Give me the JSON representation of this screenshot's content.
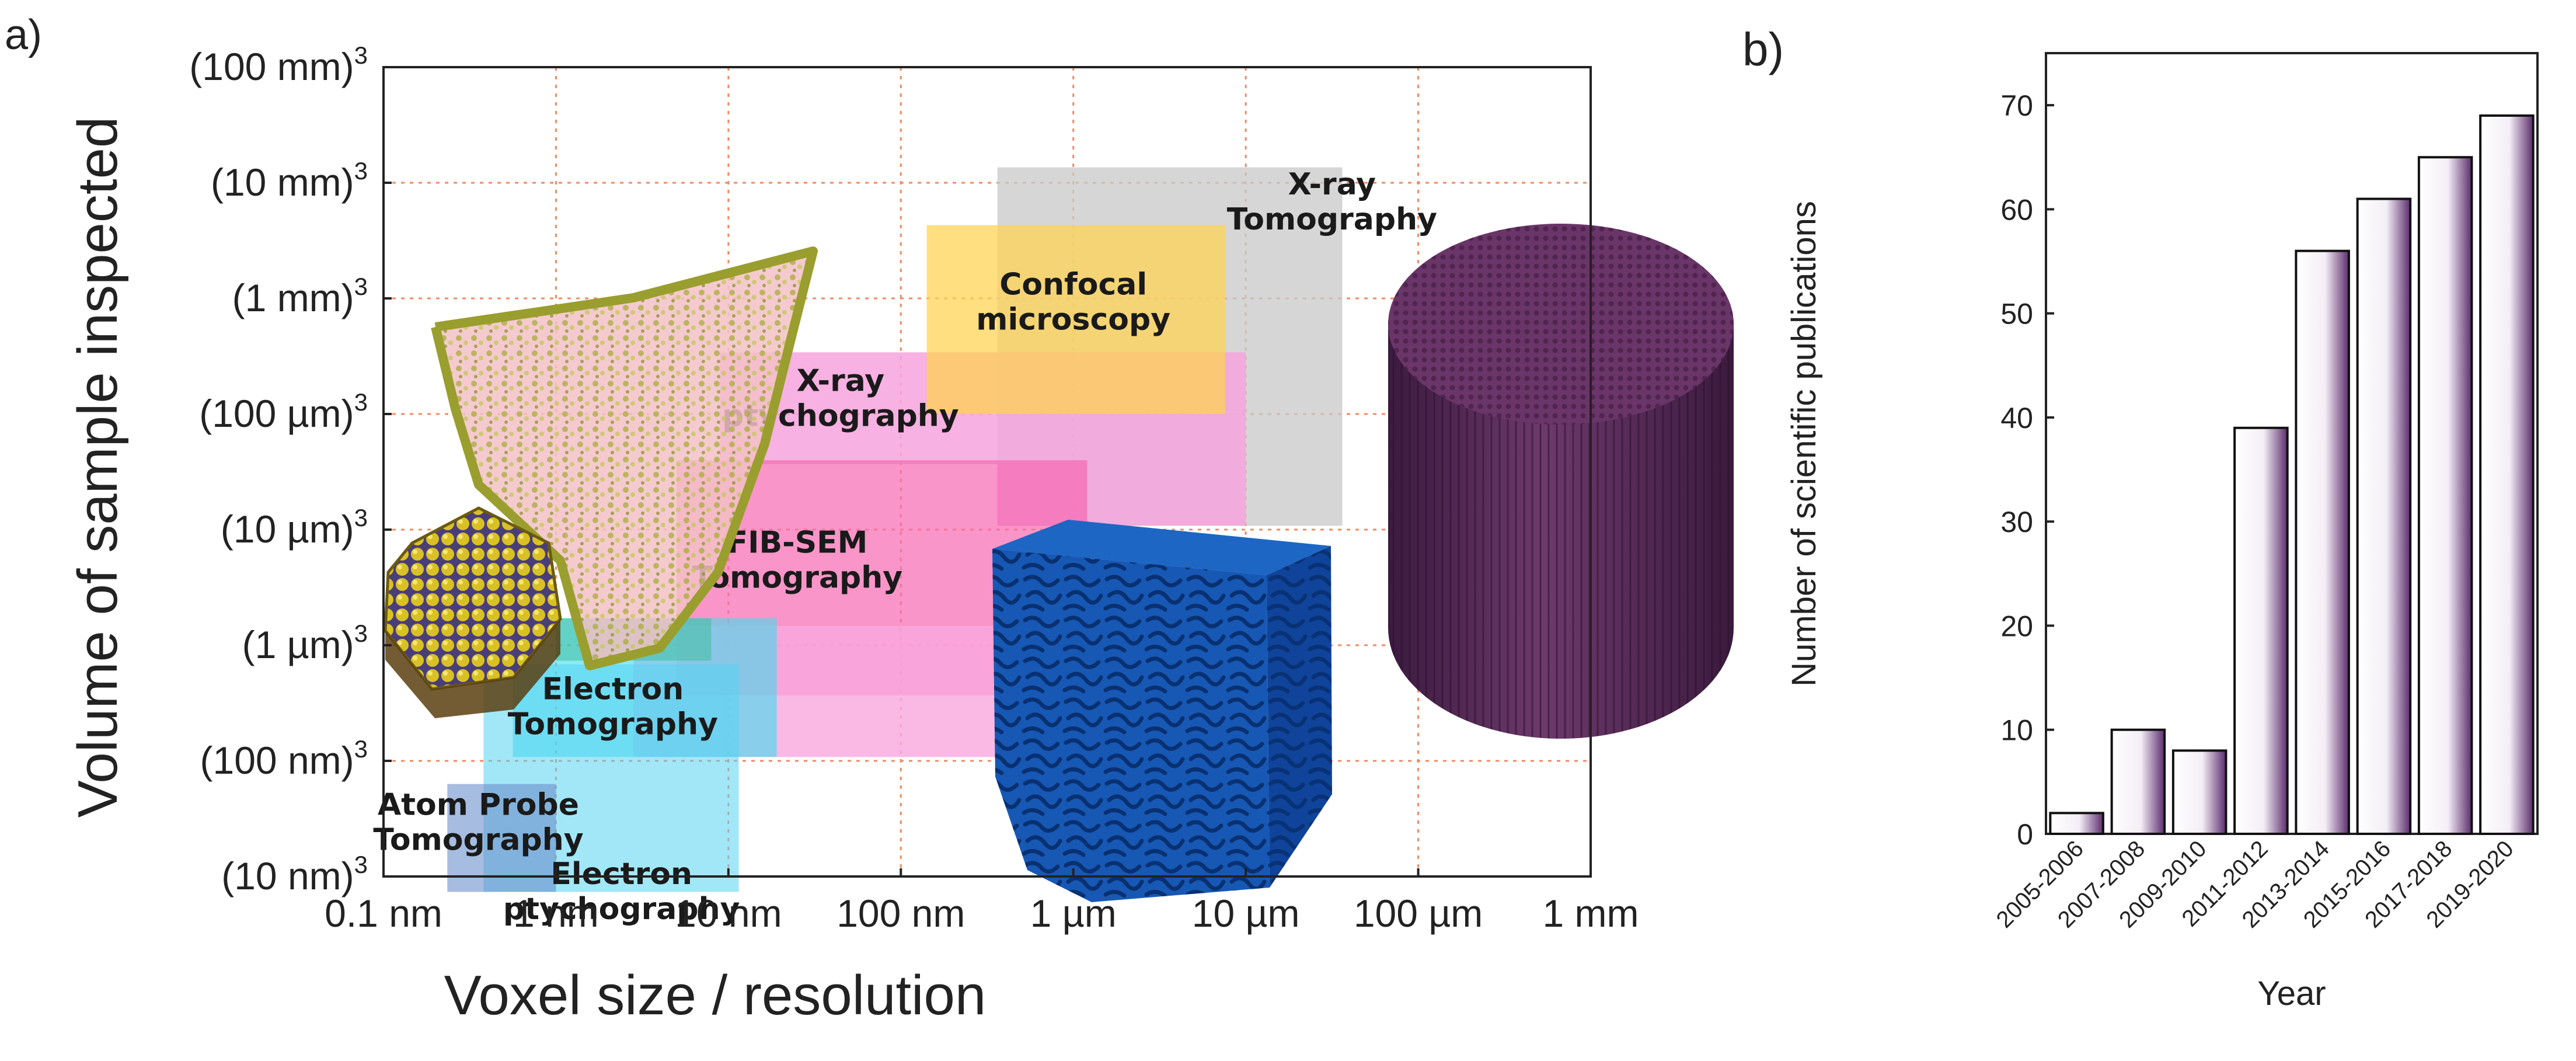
{
  "panel_labels": {
    "a": "a)",
    "b": "b)"
  },
  "chart_data": [
    {
      "id": "panel-a",
      "type": "region-map",
      "xlabel": "Voxel size / resolution",
      "ylabel": "Volume of sample inspected",
      "x_scale": "log10_meters",
      "y_scale": "log10_cubic_meters",
      "xlim": [
        -10,
        -3
      ],
      "ylim": [
        -24,
        -3
      ],
      "x_ticks": [
        {
          "v": -10,
          "label": "0.1 nm"
        },
        {
          "v": -9,
          "label": "1 nm"
        },
        {
          "v": -8,
          "label": "10 nm"
        },
        {
          "v": -7,
          "label": "100 nm"
        },
        {
          "v": -6,
          "label": "1 µm"
        },
        {
          "v": -5,
          "label": "10 µm"
        },
        {
          "v": -4,
          "label": "100 µm"
        },
        {
          "v": -3,
          "label": "1 mm"
        }
      ],
      "y_ticks": [
        {
          "v": -24,
          "base": "(10 nm)",
          "exp": "3"
        },
        {
          "v": -21,
          "base": "(100 nm)",
          "exp": "3"
        },
        {
          "v": -18,
          "base": "(1 µm)",
          "exp": "3"
        },
        {
          "v": -15,
          "base": "(10 µm)",
          "exp": "3"
        },
        {
          "v": -12,
          "base": "(100 µm)",
          "exp": "3"
        },
        {
          "v": -9,
          "base": "(1 mm)",
          "exp": "3"
        },
        {
          "v": -6,
          "base": "(10 mm)",
          "exp": "3"
        },
        {
          "v": -3,
          "base": "(100 mm)",
          "exp": "3"
        }
      ],
      "grid": true,
      "regions": [
        {
          "key": "xray-tomo",
          "label_lines": [
            "X-ray",
            "Tomography"
          ],
          "x_range": [
            -6.44,
            -4.44
          ],
          "y_range": [
            -14.9,
            -5.6
          ],
          "color": "#c8c8c8",
          "opacity": 0.75,
          "label_at": [
            -4.5,
            -6.3
          ]
        },
        {
          "key": "xray-ptycho",
          "label_lines": [
            "X-ray",
            "ptychography"
          ],
          "x_range": [
            -8.05,
            -5.0
          ],
          "y_range": [
            -13.3,
            -10.4
          ],
          "color": "#f6a3dd",
          "opacity": 0.85,
          "label_at": [
            -7.35,
            -11.4
          ]
        },
        {
          "key": "xray-ptycho-lower",
          "label_lines": [],
          "x_range": [
            -6.44,
            -5.0
          ],
          "y_range": [
            -14.9,
            -13.3
          ],
          "color": "#f6a3dd",
          "opacity": 0.85,
          "label_at": null
        },
        {
          "key": "confocal",
          "label_lines": [
            "Confocal",
            "microscopy"
          ],
          "x_range": [
            -6.85,
            -5.12
          ],
          "y_range": [
            -12.0,
            -7.1
          ],
          "color": "#ffd24d",
          "opacity": 0.72,
          "label_at": [
            -6.0,
            -8.9
          ]
        },
        {
          "key": "fib-sem",
          "label_lines": [
            "FIB-SEM",
            "Tomography"
          ],
          "x_range": [
            -8.3,
            -5.92
          ],
          "y_range": [
            -19.3,
            -13.2
          ],
          "color": "#f768b0",
          "opacity": 0.7,
          "label_at": [
            -7.6,
            -15.6
          ]
        },
        {
          "key": "fib-sem-ext",
          "label_lines": [],
          "x_range": [
            -8.55,
            -5.92
          ],
          "y_range": [
            -20.9,
            -17.5
          ],
          "color": "#f9a8df",
          "opacity": 0.8,
          "label_at": null
        },
        {
          "key": "electron-tomo",
          "label_lines": [
            "Electron",
            "Tomography"
          ],
          "x_range": [
            -9.25,
            -7.72
          ],
          "y_range": [
            -20.9,
            -17.3
          ],
          "color": "#43dcee",
          "opacity": 0.62,
          "label_at": [
            -8.67,
            -19.4
          ]
        },
        {
          "key": "electron-tomo-top",
          "label_lines": [],
          "x_range": [
            -9.0,
            -8.1
          ],
          "y_range": [
            -18.4,
            -17.3
          ],
          "color": "#3fbf9f",
          "opacity": 0.55,
          "label_at": null
        },
        {
          "key": "electron-ptycho",
          "label_lines": [
            "Electron",
            "ptychography"
          ],
          "x_range": [
            -9.42,
            -7.94
          ],
          "y_range": [
            -24.4,
            -18.5
          ],
          "color": "#55d3f2",
          "opacity": 0.55,
          "label_at": [
            -8.62,
            -24.2
          ]
        },
        {
          "key": "atom-probe",
          "label_lines": [
            "Atom Probe",
            "Tomography"
          ],
          "x_range": [
            -9.63,
            -9.0
          ],
          "y_range": [
            -24.4,
            -21.6
          ],
          "color": "#6b90cc",
          "opacity": 0.6,
          "label_at": [
            -9.45,
            -22.4
          ]
        }
      ]
    },
    {
      "id": "panel-b",
      "type": "bar",
      "title": "",
      "xlabel": "Year",
      "ylabel": "Number of scientific publications",
      "categories": [
        "2005-2006",
        "2007-2008",
        "2009-2010",
        "2011-2012",
        "2013-2014",
        "2015-2016",
        "2017-2018",
        "2019-2020"
      ],
      "values": [
        2,
        10,
        8,
        39,
        56,
        61,
        65,
        69
      ],
      "ylim": [
        0,
        75
      ],
      "yticks": [
        0,
        10,
        20,
        30,
        40,
        50,
        60,
        70
      ],
      "bar_color": "#5c2d6e",
      "grid": false
    }
  ],
  "illustrations": {
    "cell_surface": "olive-cell-surface-render",
    "nanoparticle": "atom-nanoparticle-render",
    "porous_cube": "blue-porous-cube-render",
    "fiber_cylinder": "purple-fiber-cylinder-render"
  }
}
